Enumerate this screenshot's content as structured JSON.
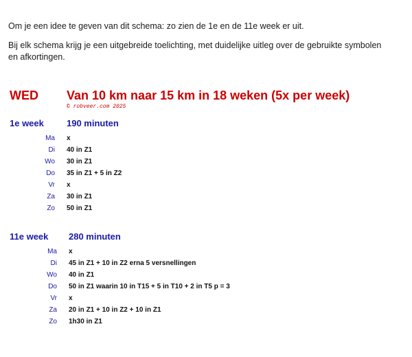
{
  "intro": {
    "line1": "Om je een idee te geven van dit schema: zo zien de 1e en de 11e week er uit.",
    "line2": "Bij elk schema krijg je een uitgebreide toelichting, met duidelijke uitleg over de gebruikte symbolen en afkortingen."
  },
  "schema": {
    "code": "WED",
    "title": "Van 10 km naar 15 km in 18 weken (5x per week)",
    "copyright": "© robveer.com 2025"
  },
  "weeks": [
    {
      "label": "1e week",
      "total": "190 minuten",
      "days": [
        {
          "day": "Ma",
          "activity": "x"
        },
        {
          "day": "Di",
          "activity": "40 in Z1"
        },
        {
          "day": "Wo",
          "activity": "30 in Z1"
        },
        {
          "day": "Do",
          "activity": "35 in Z1 +  5 in Z2"
        },
        {
          "day": "Vr",
          "activity": "x"
        },
        {
          "day": "Za",
          "activity": "30 in Z1"
        },
        {
          "day": "Zo",
          "activity": "50 in Z1"
        }
      ]
    },
    {
      "label": "11e week",
      "total": "280 minuten",
      "days": [
        {
          "day": "Ma",
          "activity": "x"
        },
        {
          "day": "Di",
          "activity": "45 in Z1 + 10 in Z2  erna 5 versnellingen"
        },
        {
          "day": "Wo",
          "activity": "40 in Z1"
        },
        {
          "day": "Do",
          "activity": "50 in Z1 waarin 10 in T15 + 5 in T10 + 2 in T5  p = 3"
        },
        {
          "day": "Vr",
          "activity": "x"
        },
        {
          "day": "Za",
          "activity": "20 in Z1 + 10 in Z2 + 10 in Z1"
        },
        {
          "day": "Zo",
          "activity": "1h30 in Z1"
        }
      ]
    }
  ]
}
